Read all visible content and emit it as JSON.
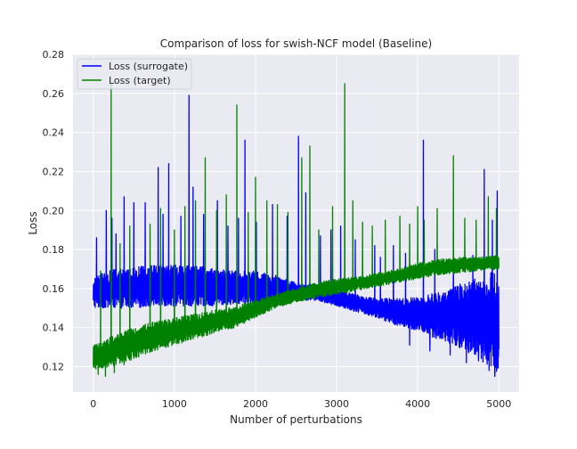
{
  "chart_data": {
    "type": "line",
    "title": "Comparison of loss for swish-NCF model (Baseline)",
    "xlabel": "Number of perturbations",
    "ylabel": "Loss",
    "xlim": [
      -250,
      5250
    ],
    "ylim": [
      0.107,
      0.28
    ],
    "xticks": [
      0,
      1000,
      2000,
      3000,
      4000,
      5000
    ],
    "yticks": [
      0.12,
      0.14,
      0.16,
      0.18,
      0.2,
      0.22,
      0.24,
      0.26,
      0.28
    ],
    "ytick_labels": [
      "0.12",
      "0.14",
      "0.16",
      "0.18",
      "0.20",
      "0.22",
      "0.24",
      "0.26",
      "0.28"
    ],
    "grid": true,
    "legend_position": "top-left",
    "background": "#eaeaf2",
    "series": [
      {
        "name": "Loss (surrogate)",
        "color": "#0000ff",
        "noisy": true,
        "x": [
          0,
          250,
          500,
          750,
          1000,
          1250,
          1500,
          1750,
          2000,
          2250,
          2500,
          2750,
          3000,
          3250,
          3500,
          3750,
          4000,
          4250,
          4500,
          4750,
          5000
        ],
        "low": [
          0.15,
          0.15,
          0.15,
          0.151,
          0.151,
          0.151,
          0.151,
          0.152,
          0.152,
          0.153,
          0.154,
          0.154,
          0.151,
          0.148,
          0.145,
          0.141,
          0.138,
          0.134,
          0.13,
          0.124,
          0.115
        ],
        "high": [
          0.166,
          0.17,
          0.171,
          0.172,
          0.172,
          0.172,
          0.17,
          0.169,
          0.169,
          0.167,
          0.163,
          0.162,
          0.159,
          0.157,
          0.155,
          0.155,
          0.156,
          0.158,
          0.162,
          0.166,
          0.17
        ],
        "spikes": [
          [
            40,
            0.186
          ],
          [
            160,
            0.2
          ],
          [
            230,
            0.196
          ],
          [
            280,
            0.188
          ],
          [
            380,
            0.207
          ],
          [
            500,
            0.204
          ],
          [
            640,
            0.204
          ],
          [
            800,
            0.222
          ],
          [
            860,
            0.198
          ],
          [
            930,
            0.224
          ],
          [
            1080,
            0.197
          ],
          [
            1180,
            0.259
          ],
          [
            1230,
            0.212
          ],
          [
            1360,
            0.198
          ],
          [
            1530,
            0.205
          ],
          [
            1660,
            0.192
          ],
          [
            1790,
            0.196
          ],
          [
            1870,
            0.236
          ],
          [
            2010,
            0.194
          ],
          [
            2210,
            0.203
          ],
          [
            2390,
            0.197
          ],
          [
            2530,
            0.238
          ],
          [
            2620,
            0.209
          ],
          [
            2800,
            0.187
          ],
          [
            2930,
            0.19
          ],
          [
            3050,
            0.192
          ],
          [
            3230,
            0.185
          ],
          [
            3470,
            0.182
          ],
          [
            3540,
            0.176
          ],
          [
            3700,
            0.182
          ],
          [
            3850,
            0.178
          ],
          [
            4070,
            0.236
          ],
          [
            4210,
            0.18
          ],
          [
            4440,
            0.18
          ],
          [
            4680,
            0.177
          ],
          [
            4820,
            0.221
          ],
          [
            4920,
            0.195
          ],
          [
            4980,
            0.21
          ]
        ],
        "dips": [
          [
            3900,
            0.131
          ],
          [
            4150,
            0.128
          ],
          [
            4400,
            0.126
          ],
          [
            4600,
            0.122
          ],
          [
            4750,
            0.123
          ],
          [
            4880,
            0.118
          ],
          [
            4950,
            0.115
          ]
        ]
      },
      {
        "name": "Loss (target)",
        "color": "#008000",
        "noisy": true,
        "x": [
          0,
          250,
          500,
          750,
          1000,
          1250,
          1500,
          1750,
          2000,
          2250,
          2500,
          2750,
          3000,
          3250,
          3500,
          3750,
          4000,
          4250,
          4500,
          4750,
          5000
        ],
        "low": [
          0.118,
          0.12,
          0.124,
          0.128,
          0.131,
          0.134,
          0.137,
          0.14,
          0.145,
          0.15,
          0.153,
          0.155,
          0.157,
          0.159,
          0.161,
          0.163,
          0.165,
          0.167,
          0.168,
          0.169,
          0.17
        ],
        "high": [
          0.131,
          0.136,
          0.14,
          0.143,
          0.145,
          0.147,
          0.149,
          0.151,
          0.154,
          0.157,
          0.16,
          0.163,
          0.165,
          0.166,
          0.168,
          0.17,
          0.173,
          0.175,
          0.176,
          0.176,
          0.177
        ],
        "spikes": [
          [
            90,
            0.169
          ],
          [
            220,
            0.265
          ],
          [
            330,
            0.183
          ],
          [
            450,
            0.192
          ],
          [
            560,
            0.219
          ],
          [
            700,
            0.193
          ],
          [
            830,
            0.201
          ],
          [
            1000,
            0.19
          ],
          [
            1130,
            0.202
          ],
          [
            1260,
            0.205
          ],
          [
            1380,
            0.227
          ],
          [
            1520,
            0.2
          ],
          [
            1640,
            0.208
          ],
          [
            1770,
            0.254
          ],
          [
            1910,
            0.199
          ],
          [
            2000,
            0.217
          ],
          [
            2140,
            0.205
          ],
          [
            2270,
            0.203
          ],
          [
            2400,
            0.199
          ],
          [
            2570,
            0.227
          ],
          [
            2670,
            0.233
          ],
          [
            2780,
            0.19
          ],
          [
            2950,
            0.202
          ],
          [
            3100,
            0.265
          ],
          [
            3200,
            0.205
          ],
          [
            3320,
            0.194
          ],
          [
            3440,
            0.192
          ],
          [
            3600,
            0.195
          ],
          [
            3780,
            0.197
          ],
          [
            3900,
            0.193
          ],
          [
            4000,
            0.202
          ],
          [
            4080,
            0.195
          ],
          [
            4240,
            0.201
          ],
          [
            4440,
            0.228
          ],
          [
            4580,
            0.196
          ],
          [
            4720,
            0.195
          ],
          [
            4870,
            0.207
          ],
          [
            4970,
            0.201
          ]
        ],
        "dips": [
          [
            60,
            0.116
          ],
          [
            150,
            0.115
          ],
          [
            260,
            0.117
          ],
          [
            380,
            0.121
          ],
          [
            560,
            0.125
          ]
        ]
      }
    ]
  }
}
